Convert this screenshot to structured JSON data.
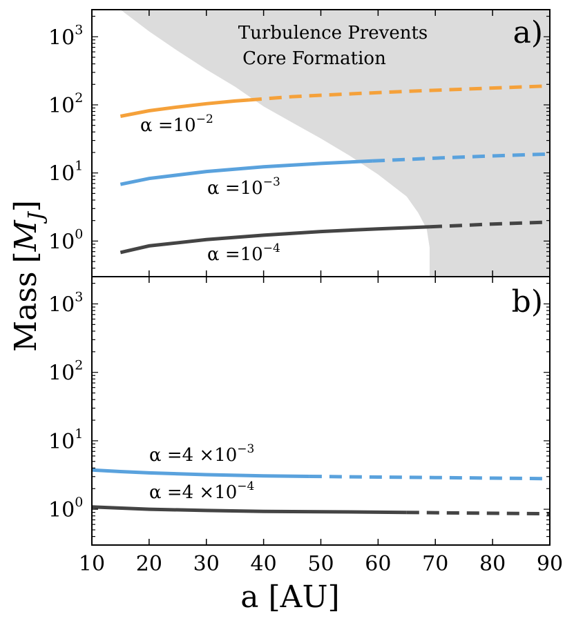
{
  "chart_data": [
    {
      "type": "line",
      "panel": "a)",
      "xlabel": "a [AU]",
      "ylabel": "Mass [M_J]",
      "xlim": [
        10,
        90
      ],
      "ylim": [
        0.3,
        2500
      ],
      "yscale": "log",
      "x_ticks": [
        "10",
        "20",
        "30",
        "40",
        "50",
        "60",
        "70",
        "80",
        "90"
      ],
      "y_ticks": [
        {
          "base": "10",
          "exp": "0"
        },
        {
          "base": "10",
          "exp": "1"
        },
        {
          "base": "10",
          "exp": "2"
        },
        {
          "base": "10",
          "exp": "3"
        }
      ],
      "shaded_region": {
        "label_line1": "Turbulence Prevents",
        "label_line2": "Core Formation",
        "boundary_x": [
          15,
          20,
          25,
          30,
          35,
          40,
          45,
          50,
          55,
          60,
          65,
          67,
          68.5,
          69,
          69
        ],
        "boundary_y": [
          2500,
          1200,
          620,
          330,
          185,
          95,
          55,
          32,
          18,
          9.5,
          4.5,
          2.6,
          1.5,
          0.8,
          0.3
        ],
        "color": "#dcdcdc"
      },
      "series": [
        {
          "name": "alpha=10^-2",
          "label_base": "α =10",
          "label_exp": "−2",
          "color": "#f5a13a",
          "solid_x": [
            15,
            20,
            25,
            30,
            35,
            37.5
          ],
          "solid_y": [
            68,
            82,
            93,
            104,
            114,
            118
          ],
          "dashed_x": [
            37.5,
            45,
            55,
            65,
            75,
            90
          ],
          "dashed_y": [
            118,
            132,
            145,
            158,
            170,
            190
          ]
        },
        {
          "name": "alpha=10^-3",
          "label_base": "α =10",
          "label_exp": "−3",
          "color": "#5aa2dd",
          "solid_x": [
            15,
            20,
            30,
            40,
            50,
            59
          ],
          "solid_y": [
            6.8,
            8.3,
            10.5,
            12.3,
            13.8,
            15
          ],
          "dashed_x": [
            59,
            70,
            80,
            90
          ],
          "dashed_y": [
            15,
            16.5,
            17.8,
            19
          ]
        },
        {
          "name": "alpha=10^-4",
          "label_base": "α =10",
          "label_exp": "−4",
          "color": "#444444",
          "solid_x": [
            15,
            20,
            30,
            40,
            50,
            60,
            69
          ],
          "solid_y": [
            0.68,
            0.85,
            1.05,
            1.22,
            1.38,
            1.51,
            1.62
          ],
          "dashed_x": [
            69,
            75,
            80,
            90
          ],
          "dashed_y": [
            1.62,
            1.7,
            1.78,
            1.9
          ]
        }
      ]
    },
    {
      "type": "line",
      "panel": "b)",
      "xlabel": "a [AU]",
      "ylabel": "Mass [M_J]",
      "xlim": [
        10,
        90
      ],
      "ylim": [
        0.3,
        2500
      ],
      "yscale": "log",
      "x_ticks": [
        "10",
        "20",
        "30",
        "40",
        "50",
        "60",
        "70",
        "80",
        "90"
      ],
      "y_ticks": [
        {
          "base": "10",
          "exp": "0"
        },
        {
          "base": "10",
          "exp": "1"
        },
        {
          "base": "10",
          "exp": "2"
        },
        {
          "base": "10",
          "exp": "3"
        }
      ],
      "series": [
        {
          "name": "alpha=4x10^-3",
          "label_base": "α =4 ×10",
          "label_exp": "−3",
          "color": "#5aa2dd",
          "solid_x": [
            10,
            15,
            20,
            30,
            40,
            48
          ],
          "solid_y": [
            3.75,
            3.55,
            3.4,
            3.2,
            3.08,
            3.02
          ],
          "dashed_x": [
            48,
            60,
            70,
            80,
            90
          ],
          "dashed_y": [
            3.02,
            2.95,
            2.9,
            2.85,
            2.8
          ]
        },
        {
          "name": "alpha=4x10^-4",
          "label_base": "α =4 ×10",
          "label_exp": "−4",
          "color": "#444444",
          "solid_x": [
            10,
            20,
            30,
            40,
            50,
            65
          ],
          "solid_y": [
            1.08,
            1.0,
            0.96,
            0.93,
            0.92,
            0.9
          ],
          "dashed_x": [
            65,
            75,
            90
          ],
          "dashed_y": [
            0.9,
            0.88,
            0.86
          ]
        }
      ]
    }
  ],
  "axis_title_y_main": "Mass",
  "axis_title_y_bracket_open": "[",
  "axis_title_y_symbol": "M",
  "axis_title_y_sub": "J",
  "axis_title_y_bracket_close": "]",
  "axis_title_x": "a [AU]"
}
